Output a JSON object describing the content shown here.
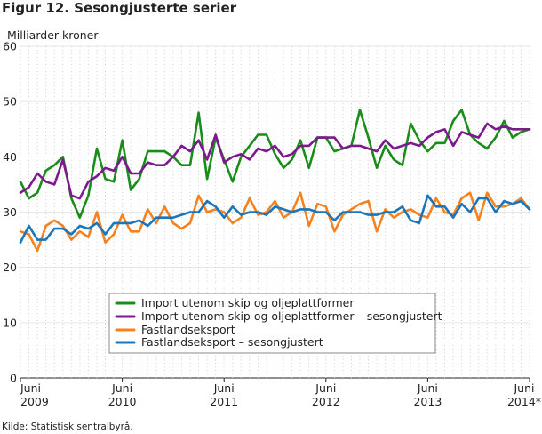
{
  "title": "Figur 12. Sesongjusterte serier",
  "source": "Kilde: Statistisk sentralbyrå.",
  "chart_data": {
    "type": "line",
    "title": "Figur 12. Sesongjusterte serier",
    "ylabel": "Milliarder kroner",
    "xlabel": "",
    "ylim": [
      0,
      60
    ],
    "yticks": [
      0,
      10,
      20,
      30,
      40,
      50,
      60
    ],
    "grid": "vertical dotted, horizontal solid",
    "legend_position": "inside lower center",
    "x_start": "2009-06",
    "x_end": "2014-06",
    "x_tick_labels": [
      {
        "month": "Juni",
        "year": "2009"
      },
      {
        "month": "Juni",
        "year": "2010"
      },
      {
        "month": "Juni",
        "year": "2011"
      },
      {
        "month": "Juni",
        "year": "2012"
      },
      {
        "month": "Juni",
        "year": "2013"
      },
      {
        "month": "Juni",
        "year": "2014*"
      }
    ],
    "series": [
      {
        "name": "Import utenom skip og oljeplattformer",
        "color": "#1a8c1a",
        "values": [
          35.5,
          32.5,
          33.5,
          37.5,
          38.5,
          40.0,
          32.5,
          29.0,
          33.0,
          41.5,
          36.0,
          35.5,
          43.0,
          34.0,
          36.0,
          41.0,
          41.0,
          41.0,
          40.0,
          38.5,
          38.5,
          48.0,
          36.0,
          43.5,
          39.5,
          35.5,
          40.0,
          42.0,
          44.0,
          44.0,
          40.5,
          38.0,
          39.5,
          43.0,
          38.0,
          43.5,
          43.5,
          41.0,
          41.5,
          42.0,
          48.5,
          43.5,
          38.0,
          42.0,
          39.5,
          38.5,
          46.0,
          43.0,
          41.0,
          42.5,
          42.5,
          46.5,
          48.5,
          44.0,
          42.5,
          41.5,
          43.5,
          46.5,
          43.5,
          44.5,
          45.0
        ]
      },
      {
        "name": "Import utenom skip og oljeplattformer – sesongjustert",
        "color": "#7b1a8c",
        "values": [
          33.5,
          34.5,
          37.0,
          35.5,
          35.0,
          39.5,
          33.0,
          32.5,
          35.5,
          36.5,
          38.0,
          37.5,
          40.0,
          37.0,
          37.0,
          39.0,
          38.5,
          38.5,
          40.0,
          42.0,
          41.0,
          43.0,
          39.5,
          44.0,
          39.0,
          40.0,
          40.5,
          39.5,
          41.5,
          41.0,
          42.0,
          40.0,
          40.5,
          42.0,
          42.0,
          43.5,
          43.5,
          43.5,
          41.5,
          42.0,
          42.0,
          41.5,
          41.0,
          43.0,
          41.5,
          42.0,
          42.5,
          42.0,
          43.5,
          44.5,
          45.0,
          42.0,
          44.5,
          44.0,
          43.5,
          46.0,
          45.0,
          45.5,
          45.0,
          45.0,
          45.0
        ]
      },
      {
        "name": "Fastlandseksport",
        "color": "#f58220",
        "values": [
          26.5,
          26.0,
          23.0,
          27.5,
          28.5,
          27.5,
          25.0,
          26.5,
          25.5,
          30.0,
          24.5,
          26.0,
          29.5,
          26.5,
          26.5,
          30.5,
          28.0,
          31.0,
          28.0,
          27.0,
          28.0,
          33.0,
          30.0,
          30.5,
          30.0,
          28.0,
          29.0,
          32.5,
          29.5,
          30.0,
          32.0,
          29.0,
          30.0,
          33.5,
          27.5,
          31.5,
          31.0,
          26.5,
          29.5,
          30.5,
          31.5,
          32.0,
          26.5,
          30.5,
          29.0,
          30.0,
          30.5,
          29.5,
          29.0,
          32.5,
          30.0,
          29.5,
          32.5,
          33.5,
          28.5,
          33.5,
          31.0,
          31.0,
          31.5,
          32.5,
          30.5
        ]
      },
      {
        "name": "Fastlandseksport – sesongjustert",
        "color": "#1b75bb",
        "values": [
          24.5,
          27.5,
          25.0,
          25.0,
          27.0,
          27.0,
          26.0,
          27.5,
          27.0,
          28.0,
          26.0,
          28.0,
          28.0,
          28.0,
          28.5,
          27.5,
          29.0,
          29.0,
          29.0,
          29.5,
          30.0,
          30.0,
          32.0,
          31.0,
          29.0,
          31.0,
          29.5,
          30.0,
          30.0,
          29.5,
          31.0,
          30.5,
          30.0,
          30.5,
          30.5,
          30.0,
          30.0,
          28.5,
          30.0,
          30.0,
          30.0,
          29.5,
          29.5,
          30.0,
          30.0,
          31.0,
          28.5,
          28.0,
          33.0,
          31.0,
          31.0,
          29.0,
          31.5,
          30.0,
          32.5,
          32.5,
          30.0,
          32.0,
          31.5,
          32.0,
          30.5
        ]
      }
    ]
  }
}
